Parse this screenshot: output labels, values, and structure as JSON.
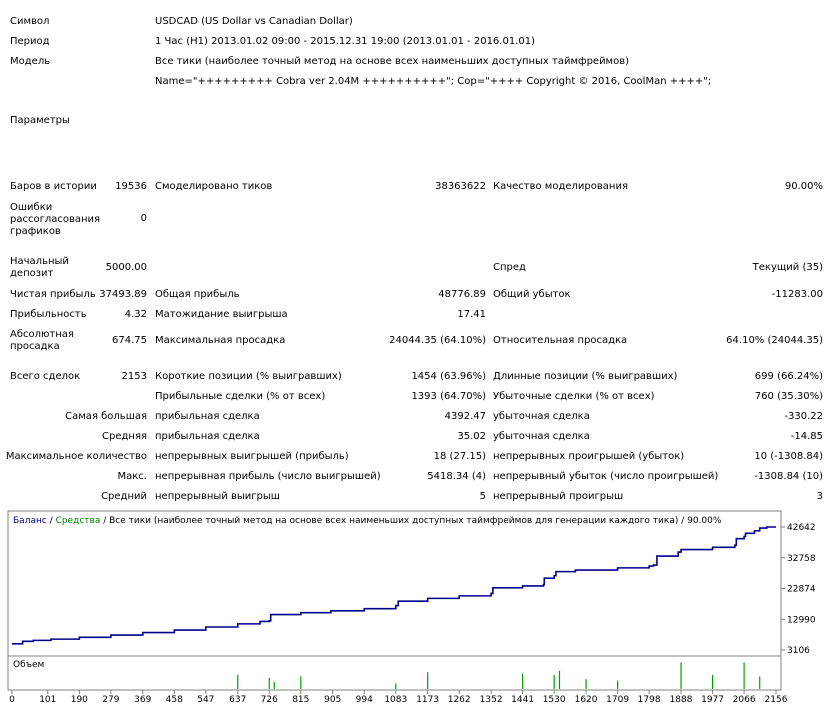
{
  "header": {
    "symbol_label": "Символ",
    "symbol_value": "USDCAD (US Dollar vs Canadian Dollar)",
    "period_label": "Период",
    "period_value": "1 Час (H1) 2013.01.02 09:00 - 2015.12.31 19:00 (2013.01.01 - 2016.01.01)",
    "model_label": "Модель",
    "model_value": "Все тики (наиболее точный метод на основе всех наименьших доступных таймфреймов)",
    "model_params": "Name=\"+++++++++ Cobra ver 2.04M ++++++++++\"; Cop=\"++++ Copyright © 2016, CoolMan ++++\";",
    "params_label": "Параметры"
  },
  "stats": {
    "bars_label": "Баров в истории",
    "bars_value": "19536",
    "ticks_label": "Смоделировано тиков",
    "ticks_value": "38363622",
    "quality_label": "Качество моделирования",
    "quality_value": "90.00%",
    "errors_label": "Ошибки рассогласования графиков",
    "errors_value": "0",
    "deposit_label": "Начальный депозит",
    "deposit_value": "5000.00",
    "spread_label": "Спред",
    "spread_value": "Текущий (35)",
    "net_profit_label": "Чистая прибыль",
    "net_profit_value": "37493.89",
    "gross_profit_label": "Общая прибыль",
    "gross_profit_value": "48776.89",
    "gross_loss_label": "Общий убыток",
    "gross_loss_value": "-11283.00",
    "profit_factor_label": "Прибыльность",
    "profit_factor_value": "4.32",
    "expected_payoff_label": "Матожидание выигрыша",
    "expected_payoff_value": "17.41",
    "abs_dd_label": "Абсолютная просадка",
    "abs_dd_value": "674.75",
    "max_dd_label": "Максимальная просадка",
    "max_dd_value": "24044.35 (64.10%)",
    "rel_dd_label": "Относительная просадка",
    "rel_dd_value": "64.10% (24044.35)",
    "total_trades_label": "Всего сделок",
    "total_trades_value": "2153",
    "short_label": "Короткие позиции (% выигравших)",
    "short_value": "1454 (63.96%)",
    "long_label": "Длинные позиции (% выигравших)",
    "long_value": "699 (66.24%)",
    "profit_trades_label": "Прибыльные сделки (% от всех)",
    "profit_trades_value": "1393 (64.70%)",
    "loss_trades_label": "Убыточные сделки (% от всех)",
    "loss_trades_value": "760 (35.30%)",
    "largest_label": "Самая большая",
    "largest_profit_label": "прибыльная сделка",
    "largest_profit_value": "4392.47",
    "largest_loss_label": "убыточная сделка",
    "largest_loss_value": "-330.22",
    "average_label": "Средняя",
    "average_profit_label": "прибыльная сделка",
    "average_profit_value": "35.02",
    "average_loss_label": "убыточная сделка",
    "average_loss_value": "-14.85",
    "max_count_label": "Максимальное количество",
    "max_cons_wins_label": "непрерывных выигрышей (прибыль)",
    "max_cons_wins_value": "18 (27.15)",
    "max_cons_losses_label": "непрерывных проигрышей (убыток)",
    "max_cons_losses_value": "10 (-1308.84)",
    "max_label": "Макс.",
    "max_cons_profit_label": "непрерывная прибыль (число выигрышей)",
    "max_cons_profit_value": "5418.34 (4)",
    "max_cons_loss_label": "непрерывный убыток (число проигрышей)",
    "max_cons_loss_value": "-1308.84 (10)",
    "avg_label": "Средний",
    "avg_cons_wins_label": "непрерывный выигрыш",
    "avg_cons_wins_value": "5",
    "avg_cons_losses_label": "непрерывный проигрыш",
    "avg_cons_losses_value": "3"
  },
  "chart_data": {
    "type": "line",
    "legend_balance": "Баланс",
    "legend_sep": " / ",
    "legend_equity": "Средства",
    "legend_rest": " / Все тики (наиболее точный метод на основе всех наименьших доступных таймфреймов для генерации каждого тика) / 90.00%",
    "volume_label": "Объем",
    "y_ticks": [
      "42642",
      "32758",
      "22874",
      "12990",
      "3106"
    ],
    "y_tick_values": [
      42642,
      32758,
      22874,
      12990,
      3106
    ],
    "x_ticks": [
      "0",
      "101",
      "190",
      "279",
      "369",
      "458",
      "547",
      "637",
      "726",
      "815",
      "905",
      "994",
      "1083",
      "1173",
      "1262",
      "1352",
      "1441",
      "1530",
      "1620",
      "1709",
      "1798",
      "1888",
      "1977",
      "2066",
      "2156"
    ],
    "ylim": [
      3106,
      42642
    ],
    "xlim": [
      0,
      2156
    ],
    "colors": {
      "balance": "#00008b",
      "equity": "#008000",
      "volume": "#00a000"
    },
    "series": [
      {
        "name": "Баланс",
        "x": [
          0,
          30,
          60,
          110,
          190,
          279,
          369,
          458,
          547,
          637,
          700,
          726,
          730,
          815,
          900,
          994,
          1083,
          1090,
          1173,
          1262,
          1352,
          1357,
          1441,
          1500,
          1502,
          1530,
          1535,
          1590,
          1709,
          1798,
          1810,
          1820,
          1880,
          1888,
          1977,
          2040,
          2044,
          2066,
          2070,
          2095,
          2110,
          2130,
          2156
        ],
        "y": [
          5100,
          5900,
          6200,
          6600,
          7200,
          7900,
          8700,
          9500,
          10500,
          11500,
          12300,
          12500,
          14500,
          15100,
          15700,
          16400,
          17400,
          18800,
          19700,
          20500,
          21300,
          23100,
          23700,
          24200,
          26200,
          27000,
          28300,
          28800,
          29500,
          30100,
          30400,
          33300,
          34600,
          35400,
          36100,
          36800,
          38900,
          39600,
          40600,
          41400,
          42300,
          42642,
          42642
        ]
      }
    ],
    "volume": [
      {
        "x": 637,
        "v": 0.5
      },
      {
        "x": 726,
        "v": 0.4
      },
      {
        "x": 740,
        "v": 0.25
      },
      {
        "x": 815,
        "v": 0.45
      },
      {
        "x": 1083,
        "v": 0.2
      },
      {
        "x": 1173,
        "v": 0.6
      },
      {
        "x": 1441,
        "v": 0.55
      },
      {
        "x": 1530,
        "v": 0.5
      },
      {
        "x": 1545,
        "v": 0.65
      },
      {
        "x": 1620,
        "v": 0.35
      },
      {
        "x": 1709,
        "v": 0.3
      },
      {
        "x": 1888,
        "v": 0.95
      },
      {
        "x": 1977,
        "v": 0.5
      },
      {
        "x": 2066,
        "v": 0.95
      },
      {
        "x": 2110,
        "v": 0.45
      }
    ]
  }
}
